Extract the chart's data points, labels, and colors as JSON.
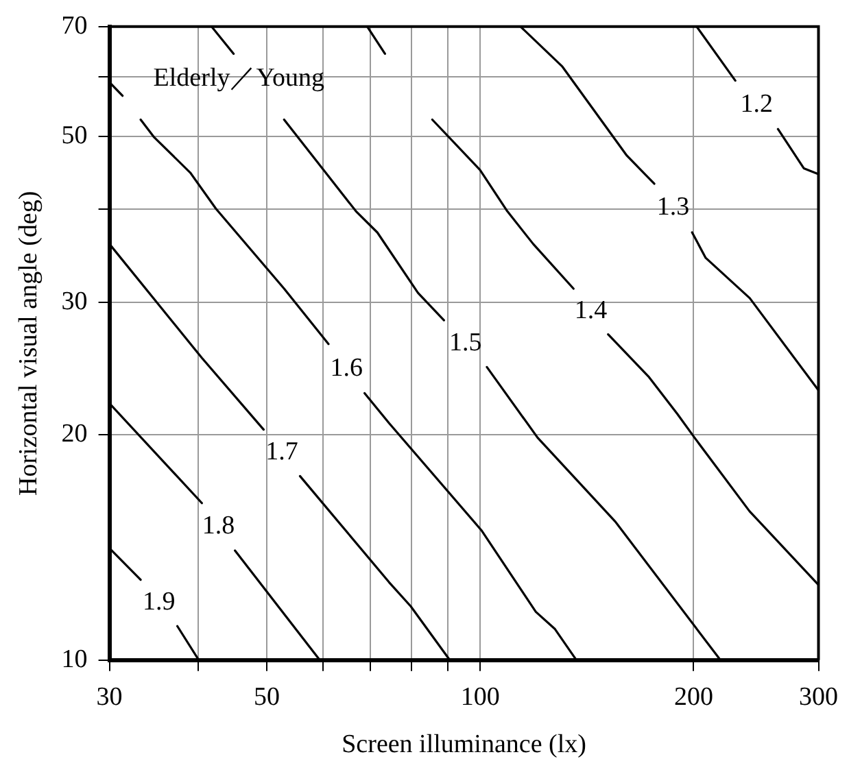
{
  "chart_data": {
    "type": "line",
    "xlabel": "Screen illuminance (lx)",
    "ylabel": "Horizontal visual angle (deg)",
    "annotations": [
      "Elderly／Young"
    ],
    "log": "xy",
    "xlim": [
      30,
      300
    ],
    "ylim": [
      10,
      70
    ],
    "xticks": [
      30,
      {
        "value": 40,
        "label": null
      },
      50,
      {
        "value": 60,
        "label": null
      },
      {
        "value": 70,
        "label": null
      },
      {
        "value": 80,
        "label": null
      },
      {
        "value": 90,
        "label": null
      },
      100,
      200,
      300
    ],
    "yticks": [
      10,
      20,
      30,
      {
        "value": 40,
        "label": null
      },
      50,
      {
        "value": 60,
        "label": null
      },
      70
    ],
    "grid": true,
    "legend": false,
    "marker": "none",
    "line_style": "solid",
    "series": [
      {
        "name": "1.2",
        "color": "#000000",
        "x": [
          202,
          229,
          245,
          263,
          286,
          300
        ],
        "values": [
          70,
          59.3,
          null,
          51.1,
          45.3,
          44.5
        ]
      },
      {
        "name": "1.3",
        "color": "#000000",
        "x": [
          114,
          130.6,
          161,
          176,
          187,
          199,
          208,
          240,
          300
        ],
        "values": [
          70,
          61.9,
          47.1,
          43.2,
          null,
          37.2,
          34.4,
          30.4,
          22.9
        ]
      },
      {
        "name": "1.4",
        "color": "#000000",
        "x": [
          69.3,
          73.4,
          79,
          85.6,
          99.9,
          109.2,
          118.8,
          135.4,
          141.2,
          151.5,
          172.7,
          189.7,
          200.6,
          239.8,
          300
        ],
        "values": [
          70,
          64.4,
          null,
          52.6,
          45.1,
          39.7,
          35.9,
          31.3,
          null,
          27.2,
          23.9,
          21.3,
          19.8,
          15.8,
          12.6
        ]
      },
      {
        "name": "1.5",
        "color": "#000000",
        "x": [
          41.8,
          44.9,
          48.8,
          52.9,
          66.8,
          71.6,
          81.7,
          88.9,
          94.9,
          102.2,
          120.5,
          155.1,
          218.2
        ],
        "values": [
          70,
          64.4,
          null,
          52.6,
          39.7,
          37.2,
          30.9,
          28.4,
          null,
          24.6,
          19.8,
          15.3,
          10
        ]
      },
      {
        "name": "1.6",
        "color": "#000000",
        "x": [
          30,
          31.3,
          32.3,
          33.2,
          34.7,
          39,
          42.4,
          52.9,
          61.1,
          64.6,
          68.7,
          74.4,
          100.4,
          119.8,
          127.5,
          136.7
        ],
        "values": [
          59,
          56.6,
          null,
          52.6,
          49.8,
          44.7,
          40,
          31.3,
          26.4,
          null,
          22.7,
          20.7,
          14.9,
          11.6,
          11,
          10
        ]
      },
      {
        "name": "1.7",
        "color": "#000000",
        "x": [
          30,
          40.5,
          49.5,
          53.1,
          55.7,
          74.4,
          79.8,
          90.6
        ],
        "values": [
          35.9,
          25.3,
          20.3,
          null,
          17.6,
          12.7,
          11.8,
          10
        ]
      },
      {
        "name": "1.8",
        "color": "#000000",
        "x": [
          30,
          40.5,
          42.7,
          45.1,
          59.4
        ],
        "values": [
          22,
          16.2,
          null,
          14,
          10
        ]
      },
      {
        "name": "1.9",
        "color": "#000000",
        "x": [
          30,
          33.2,
          35.2,
          37.4,
          40.1
        ],
        "values": [
          14.1,
          12.8,
          null,
          11.1,
          10
        ]
      }
    ]
  }
}
